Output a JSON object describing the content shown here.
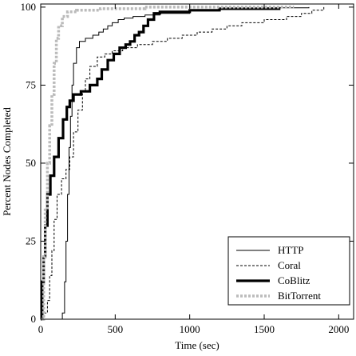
{
  "chart_data": {
    "type": "line",
    "title": "",
    "xlabel": "Time (sec)",
    "ylabel": "Percent Nodes Completed",
    "xlim": [
      0,
      2100
    ],
    "ylim": [
      0,
      101
    ],
    "xticks": [
      0,
      500,
      1000,
      1500,
      2000
    ],
    "yticks": [
      0,
      25,
      50,
      75,
      100
    ],
    "grid": false,
    "legend_position": "bottom-right",
    "series": [
      {
        "name": "HTTP",
        "style": "solid-thin",
        "color": "#000000",
        "points": [
          [
            130,
            0
          ],
          [
            145,
            2
          ],
          [
            160,
            12
          ],
          [
            170,
            25
          ],
          [
            180,
            40
          ],
          [
            190,
            55
          ],
          [
            200,
            65
          ],
          [
            210,
            75
          ],
          [
            220,
            82
          ],
          [
            240,
            87
          ],
          [
            260,
            89
          ],
          [
            300,
            90
          ],
          [
            350,
            91
          ],
          [
            390,
            92
          ],
          [
            420,
            93
          ],
          [
            450,
            94
          ],
          [
            480,
            95
          ],
          [
            520,
            96
          ],
          [
            560,
            96.5
          ],
          [
            620,
            97
          ],
          [
            700,
            97.5
          ],
          [
            800,
            98
          ],
          [
            1000,
            98.8
          ],
          [
            1200,
            99.4
          ],
          [
            1500,
            99.8
          ],
          [
            1800,
            100
          ]
        ]
      },
      {
        "name": "Coral",
        "style": "dashed-thin",
        "color": "#000000",
        "points": [
          [
            10,
            0
          ],
          [
            25,
            2
          ],
          [
            45,
            6
          ],
          [
            60,
            14
          ],
          [
            75,
            22
          ],
          [
            90,
            32
          ],
          [
            110,
            40
          ],
          [
            140,
            45
          ],
          [
            170,
            48
          ],
          [
            195,
            52
          ],
          [
            220,
            60
          ],
          [
            250,
            67
          ],
          [
            280,
            73
          ],
          [
            300,
            77
          ],
          [
            330,
            81
          ],
          [
            380,
            84
          ],
          [
            430,
            85
          ],
          [
            480,
            86
          ],
          [
            550,
            87
          ],
          [
            650,
            88
          ],
          [
            750,
            89
          ],
          [
            850,
            90
          ],
          [
            950,
            91
          ],
          [
            1050,
            92
          ],
          [
            1150,
            93
          ],
          [
            1250,
            94
          ],
          [
            1350,
            95
          ],
          [
            1500,
            96
          ],
          [
            1650,
            97
          ],
          [
            1750,
            98
          ],
          [
            1820,
            99
          ],
          [
            1900,
            100
          ]
        ]
      },
      {
        "name": "CoBlitz",
        "style": "solid-thick",
        "color": "#000000",
        "points": [
          [
            0,
            0
          ],
          [
            10,
            12
          ],
          [
            20,
            20
          ],
          [
            30,
            30
          ],
          [
            45,
            40
          ],
          [
            65,
            46
          ],
          [
            90,
            52
          ],
          [
            120,
            58
          ],
          [
            150,
            64
          ],
          [
            175,
            68
          ],
          [
            195,
            70
          ],
          [
            220,
            72
          ],
          [
            270,
            73
          ],
          [
            330,
            75
          ],
          [
            380,
            77
          ],
          [
            410,
            80
          ],
          [
            450,
            83
          ],
          [
            490,
            85
          ],
          [
            530,
            87
          ],
          [
            570,
            88
          ],
          [
            600,
            89
          ],
          [
            630,
            91
          ],
          [
            660,
            92
          ],
          [
            690,
            94
          ],
          [
            720,
            96
          ],
          [
            760,
            98
          ],
          [
            800,
            98.5
          ],
          [
            1000,
            99
          ],
          [
            1200,
            99.5
          ],
          [
            1600,
            100
          ]
        ]
      },
      {
        "name": "BitTorrent",
        "style": "dotted-thick",
        "color": "#bbbbbb",
        "points": [
          [
            5,
            0
          ],
          [
            20,
            20
          ],
          [
            30,
            35
          ],
          [
            45,
            50
          ],
          [
            60,
            62
          ],
          [
            75,
            72
          ],
          [
            90,
            82
          ],
          [
            105,
            90
          ],
          [
            120,
            94
          ],
          [
            145,
            97
          ],
          [
            180,
            98.5
          ],
          [
            240,
            99
          ],
          [
            400,
            99.5
          ],
          [
            700,
            100
          ],
          [
            1700,
            100
          ]
        ]
      }
    ]
  }
}
